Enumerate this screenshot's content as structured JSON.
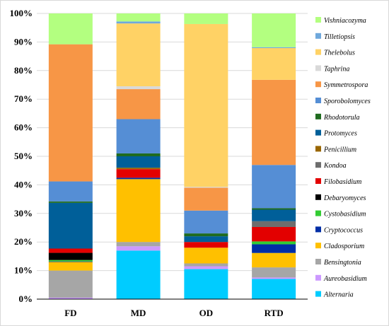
{
  "chart_data": {
    "type": "bar",
    "stacked": true,
    "percent_stacked": true,
    "categories": [
      "FD",
      "MD",
      "OD",
      "RTD"
    ],
    "y_ticks": [
      "0%",
      "10%",
      "20%",
      "30%",
      "40%",
      "50%",
      "60%",
      "70%",
      "80%",
      "90%",
      "100%"
    ],
    "ylim": [
      0,
      100
    ],
    "grid": true,
    "legend_position": "right",
    "series": [
      {
        "name": "Alternaria",
        "color": "#00ccff",
        "values": [
          0,
          17,
          10.5,
          7
        ]
      },
      {
        "name": "Aureobasidium",
        "color": "#cc99ff",
        "values": [
          0.5,
          1.5,
          1,
          0.5
        ]
      },
      {
        "name": "Bensingtonia",
        "color": "#a6a6a6",
        "values": [
          9.5,
          1.5,
          1,
          3.5
        ]
      },
      {
        "name": "Cladosporium",
        "color": "#ffc000",
        "values": [
          3,
          22,
          5.5,
          5
        ]
      },
      {
        "name": "Cryptococcus",
        "color": "#002ea6",
        "values": [
          0.2,
          0.5,
          0,
          3
        ]
      },
      {
        "name": "Cystobasidium",
        "color": "#33cc33",
        "values": [
          0.5,
          0,
          0,
          1
        ]
      },
      {
        "name": "Debaryomyces",
        "color": "#000000",
        "values": [
          2.5,
          0,
          0,
          0
        ]
      },
      {
        "name": "Filobasidium",
        "color": "#e30000",
        "values": [
          1.5,
          3,
          2,
          5
        ]
      },
      {
        "name": "Kondoa",
        "color": "#6d6d6d",
        "values": [
          0,
          0,
          0,
          2
        ]
      },
      {
        "name": "Penicillium",
        "color": "#996600",
        "values": [
          0,
          0.5,
          0,
          0
        ]
      },
      {
        "name": "Protomyces",
        "color": "#005f99",
        "values": [
          16,
          4,
          2,
          4
        ]
      },
      {
        "name": "Rhodotorula",
        "color": "#1f6b1f",
        "values": [
          0.5,
          1,
          1,
          0.5
        ]
      },
      {
        "name": "Sporobolomyces",
        "color": "#558ed5",
        "values": [
          7,
          12,
          8,
          15
        ]
      },
      {
        "name": "Symmetrospora",
        "color": "#f79646",
        "values": [
          48,
          10.5,
          8,
          29.5
        ]
      },
      {
        "name": "Taphrina",
        "color": "#d9d9d9",
        "values": [
          0,
          1,
          0.3,
          0
        ]
      },
      {
        "name": "Thelebolus",
        "color": "#ffd265",
        "values": [
          0,
          22,
          57,
          11
        ]
      },
      {
        "name": "Tilletiopsis",
        "color": "#6fa8dc",
        "values": [
          0,
          0.7,
          0,
          0.3
        ]
      },
      {
        "name": "Vishniacozyma",
        "color": "#b3ff80",
        "values": [
          10.8,
          2.8,
          3.7,
          11.7
        ]
      }
    ]
  }
}
